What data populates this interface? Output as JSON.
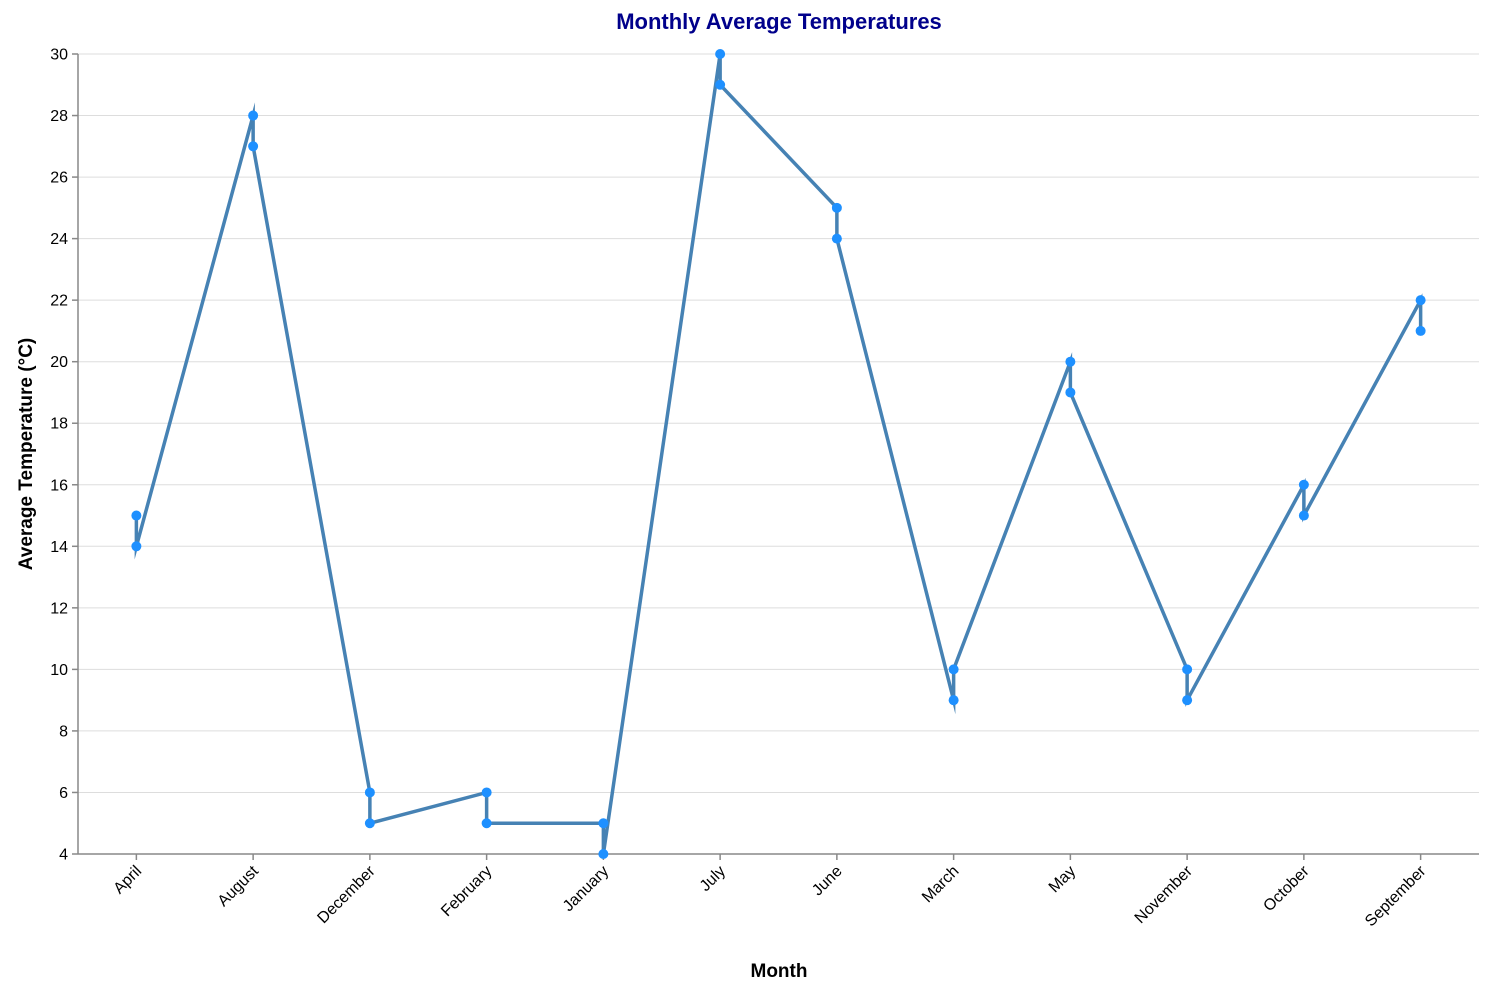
{
  "chart_data": {
    "type": "line",
    "title": "Monthly Average Temperatures",
    "xlabel": "Month",
    "ylabel": "Average Temperature (°C)",
    "categories": [
      "April",
      "August",
      "December",
      "February",
      "January",
      "July",
      "June",
      "March",
      "May",
      "November",
      "October",
      "September"
    ],
    "ylim": [
      4,
      30
    ],
    "yticks": [
      4,
      6,
      8,
      10,
      12,
      14,
      16,
      18,
      20,
      22,
      24,
      26,
      28,
      30
    ],
    "grid": true,
    "line_color": "#4682b4",
    "point_color": "#1e90ff",
    "title_color": "#00008b",
    "points": [
      {
        "x": "April",
        "y": 15
      },
      {
        "x": "April",
        "y": 14
      },
      {
        "x": "August",
        "y": 28
      },
      {
        "x": "August",
        "y": 27
      },
      {
        "x": "December",
        "y": 6
      },
      {
        "x": "December",
        "y": 5
      },
      {
        "x": "February",
        "y": 5
      },
      {
        "x": "February",
        "y": 6
      },
      {
        "x": "January",
        "y": 5
      },
      {
        "x": "January",
        "y": 4
      },
      {
        "x": "July",
        "y": 30
      },
      {
        "x": "July",
        "y": 29
      },
      {
        "x": "June",
        "y": 25
      },
      {
        "x": "June",
        "y": 24
      },
      {
        "x": "March",
        "y": 10
      },
      {
        "x": "March",
        "y": 9
      },
      {
        "x": "May",
        "y": 20
      },
      {
        "x": "May",
        "y": 19
      },
      {
        "x": "November",
        "y": 10
      },
      {
        "x": "November",
        "y": 9
      },
      {
        "x": "October",
        "y": 16
      },
      {
        "x": "October",
        "y": 15
      },
      {
        "x": "September",
        "y": 22
      },
      {
        "x": "September",
        "y": 21
      }
    ],
    "line_path": [
      {
        "x": "April",
        "y": 15
      },
      {
        "x": "April",
        "y": 14
      },
      {
        "x": "August",
        "y": 28
      },
      {
        "x": "August",
        "y": 27
      },
      {
        "x": "December",
        "y": 6
      },
      {
        "x": "December",
        "y": 5
      },
      {
        "x": "February",
        "y": 6
      },
      {
        "x": "February",
        "y": 5
      },
      {
        "x": "January",
        "y": 5
      },
      {
        "x": "January",
        "y": 4
      },
      {
        "x": "July",
        "y": 30
      },
      {
        "x": "July",
        "y": 29
      },
      {
        "x": "June",
        "y": 25
      },
      {
        "x": "June",
        "y": 24
      },
      {
        "x": "March",
        "y": 9
      },
      {
        "x": "March",
        "y": 10
      },
      {
        "x": "May",
        "y": 20
      },
      {
        "x": "May",
        "y": 19
      },
      {
        "x": "November",
        "y": 10
      },
      {
        "x": "November",
        "y": 9
      },
      {
        "x": "October",
        "y": 16
      },
      {
        "x": "October",
        "y": 15
      },
      {
        "x": "September",
        "y": 22
      },
      {
        "x": "September",
        "y": 21
      }
    ]
  }
}
